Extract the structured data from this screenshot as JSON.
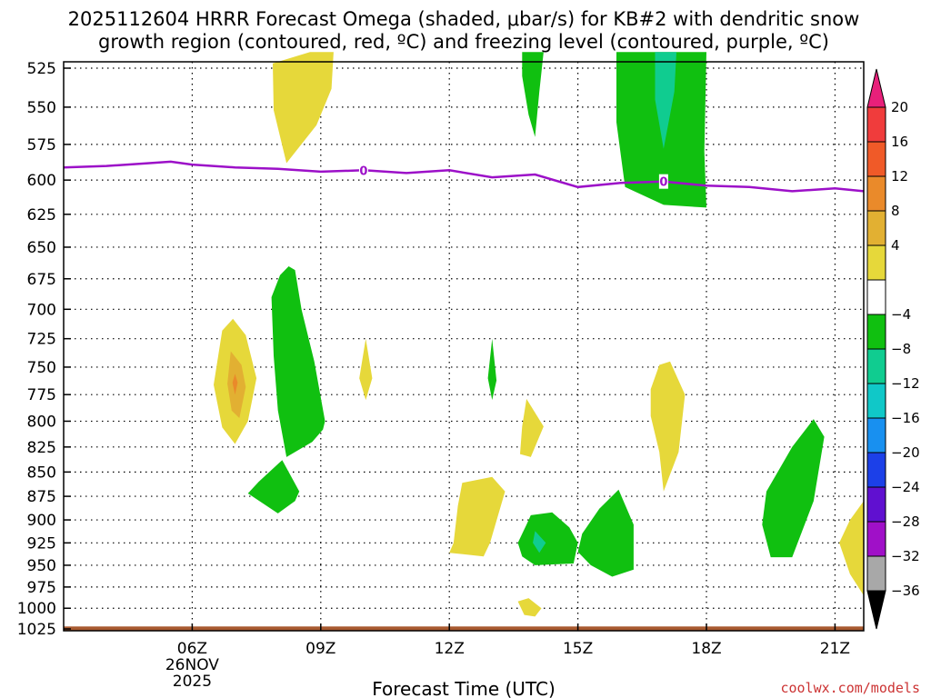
{
  "chart_data": {
    "type": "heatmap",
    "title_line1": "2025112604 HRRR Forecast Omega (shaded, μbar/s) for KB#2 with dendritic snow",
    "title_line2": "growth region (contoured, red, ºC) and freezing level (contoured, purple, ºC)",
    "xlabel": "Forecast Time (UTC)",
    "credit": "coolwx.com/models",
    "credit_color": "#cc3333",
    "x_range_hours": [
      3,
      21.67
    ],
    "y_range_hpa": [
      525,
      1025
    ],
    "x_ticks": [
      {
        "hour": 6,
        "label": "06Z",
        "sub1": "26NOV",
        "sub2": "2025"
      },
      {
        "hour": 9,
        "label": "09Z"
      },
      {
        "hour": 12,
        "label": "12Z"
      },
      {
        "hour": 15,
        "label": "15Z"
      },
      {
        "hour": 18,
        "label": "18Z"
      },
      {
        "hour": 21,
        "label": "21Z"
      }
    ],
    "y_ticks": [
      525,
      550,
      575,
      600,
      625,
      650,
      675,
      700,
      725,
      750,
      775,
      800,
      825,
      850,
      875,
      900,
      925,
      950,
      975,
      1000,
      1025
    ],
    "colorbar": {
      "labels": [
        "20",
        "16",
        "12",
        "8",
        "4",
        "−4",
        "−8",
        "−12",
        "−16",
        "−20",
        "−24",
        "−28",
        "−32",
        "−36"
      ],
      "bins": [
        {
          "color": "#e8207a",
          "role": "top-arrow"
        },
        {
          "color": "#f03c3c"
        },
        {
          "color": "#f05a28"
        },
        {
          "color": "#ea8a2a"
        },
        {
          "color": "#e2b032"
        },
        {
          "color": "#e6d83a"
        },
        {
          "color": "#ffffff"
        },
        {
          "color": "#10c010"
        },
        {
          "color": "#10cc90"
        },
        {
          "color": "#10c8c8"
        },
        {
          "color": "#1890f0"
        },
        {
          "color": "#1c40e8"
        },
        {
          "color": "#6010d0"
        },
        {
          "color": "#a010c8"
        },
        {
          "color": "#a8a8a8"
        },
        {
          "color": "#000000",
          "role": "bottom-arrow"
        }
      ]
    },
    "freezing_level": {
      "color": "#9c10c8",
      "label": "0",
      "label_hours": [
        10,
        17
      ],
      "points": [
        [
          3,
          591
        ],
        [
          4,
          590
        ],
        [
          5,
          588
        ],
        [
          5.5,
          587
        ],
        [
          6,
          589
        ],
        [
          7,
          591
        ],
        [
          8,
          592
        ],
        [
          9,
          594
        ],
        [
          10,
          593
        ],
        [
          11,
          595
        ],
        [
          12,
          593
        ],
        [
          13,
          598
        ],
        [
          14,
          596
        ],
        [
          15,
          605
        ],
        [
          16,
          602
        ],
        [
          17,
          601
        ],
        [
          18,
          604
        ],
        [
          19,
          605
        ],
        [
          20,
          608
        ],
        [
          21,
          606
        ],
        [
          21.67,
          608
        ]
      ]
    },
    "shaded_regions": [
      {
        "omega_bin": "4 to 8",
        "color": "#e6d83a",
        "points": [
          [
            6.7,
            718
          ],
          [
            6.95,
            708
          ],
          [
            7.25,
            722
          ],
          [
            7.5,
            760
          ],
          [
            7.3,
            800
          ],
          [
            7.0,
            822
          ],
          [
            6.7,
            806
          ],
          [
            6.5,
            766
          ]
        ]
      },
      {
        "omega_bin": "8 to 12",
        "color": "#e2b032",
        "points": [
          [
            6.9,
            736
          ],
          [
            7.15,
            748
          ],
          [
            7.25,
            768
          ],
          [
            7.1,
            797
          ],
          [
            6.92,
            790
          ],
          [
            6.82,
            765
          ]
        ]
      },
      {
        "omega_bin": "12 to 16",
        "color": "#ea8a2a",
        "points": [
          [
            7.0,
            756
          ],
          [
            7.06,
            764
          ],
          [
            7.0,
            775
          ],
          [
            6.94,
            764
          ]
        ]
      },
      {
        "omega_bin": "4 to 8",
        "color": "#e6d83a",
        "points": [
          [
            8.75,
            515
          ],
          [
            9.3,
            515
          ],
          [
            9.25,
            538
          ],
          [
            8.9,
            562
          ],
          [
            8.2,
            588
          ],
          [
            7.9,
            552
          ],
          [
            7.88,
            522
          ]
        ]
      },
      {
        "omega_bin": "−4 to −8",
        "color": "#10c010",
        "points": [
          [
            8.25,
            665
          ],
          [
            8.4,
            668
          ],
          [
            8.55,
            700
          ],
          [
            8.85,
            745
          ],
          [
            9.1,
            800
          ],
          [
            9.05,
            808
          ],
          [
            8.8,
            820
          ],
          [
            8.2,
            835
          ],
          [
            8.0,
            790
          ],
          [
            7.9,
            740
          ],
          [
            7.85,
            690
          ],
          [
            8.05,
            672
          ]
        ]
      },
      {
        "omega_bin": "−4 to −8",
        "color": "#10c010",
        "points": [
          [
            8.1,
            838
          ],
          [
            8.5,
            870
          ],
          [
            8.4,
            880
          ],
          [
            8.0,
            893
          ],
          [
            7.3,
            872
          ],
          [
            7.55,
            860
          ]
        ]
      },
      {
        "omega_bin": "4 to 8",
        "color": "#e6d83a",
        "points": [
          [
            10.05,
            725
          ],
          [
            10.2,
            760
          ],
          [
            10.05,
            780
          ],
          [
            9.9,
            760
          ]
        ]
      },
      {
        "omega_bin": "−4 to −8",
        "color": "#10c010",
        "points": [
          [
            13.0,
            725
          ],
          [
            13.1,
            762
          ],
          [
            13.0,
            780
          ],
          [
            12.9,
            760
          ]
        ]
      },
      {
        "omega_bin": "4 to 8",
        "color": "#e6d83a",
        "points": [
          [
            13.8,
            779
          ],
          [
            14.2,
            805
          ],
          [
            13.9,
            835
          ],
          [
            13.65,
            832
          ],
          [
            13.7,
            805
          ]
        ]
      },
      {
        "omega_bin": "−4 to −8",
        "color": "#10c010",
        "points": [
          [
            13.7,
            515
          ],
          [
            14.2,
            515
          ],
          [
            14.1,
            540
          ],
          [
            14.0,
            570
          ],
          [
            13.85,
            555
          ],
          [
            13.7,
            530
          ]
        ]
      },
      {
        "omega_bin": "−4 to −8",
        "color": "#10c010",
        "points": [
          [
            15.9,
            515
          ],
          [
            18.0,
            515
          ],
          [
            17.95,
            580
          ],
          [
            18.0,
            620
          ],
          [
            17.0,
            618
          ],
          [
            16.1,
            605
          ],
          [
            15.9,
            560
          ]
        ]
      },
      {
        "omega_bin": "−8 to −12",
        "color": "#10cc90",
        "points": [
          [
            16.8,
            515
          ],
          [
            17.3,
            515
          ],
          [
            17.25,
            540
          ],
          [
            17.0,
            578
          ],
          [
            16.8,
            545
          ]
        ]
      },
      {
        "omega_bin": "4 to 8",
        "color": "#e6d83a",
        "points": [
          [
            12.3,
            861
          ],
          [
            13.0,
            855
          ],
          [
            13.3,
            870
          ],
          [
            12.95,
            925
          ],
          [
            12.8,
            940
          ],
          [
            12.0,
            936
          ],
          [
            12.1,
            925
          ],
          [
            12.2,
            885
          ]
        ]
      },
      {
        "omega_bin": "4 to 8",
        "color": "#e6d83a",
        "points": [
          [
            16.9,
            748
          ],
          [
            17.15,
            745
          ],
          [
            17.5,
            775
          ],
          [
            17.35,
            830
          ],
          [
            17.0,
            870
          ],
          [
            16.9,
            830
          ],
          [
            16.7,
            795
          ],
          [
            16.7,
            770
          ]
        ]
      },
      {
        "omega_bin": "−4 to −8",
        "color": "#10c010",
        "points": [
          [
            13.9,
            895
          ],
          [
            14.4,
            892
          ],
          [
            14.8,
            908
          ],
          [
            15.0,
            925
          ],
          [
            14.9,
            948
          ],
          [
            14.0,
            950
          ],
          [
            13.7,
            940
          ],
          [
            13.6,
            925
          ],
          [
            13.8,
            905
          ]
        ]
      },
      {
        "omega_bin": "−4 to −8",
        "color": "#10c010",
        "points": [
          [
            15.5,
            888
          ],
          [
            15.95,
            868
          ],
          [
            16.3,
            905
          ],
          [
            16.3,
            955
          ],
          [
            15.8,
            963
          ],
          [
            15.3,
            950
          ],
          [
            15.0,
            935
          ],
          [
            15.1,
            915
          ]
        ]
      },
      {
        "omega_bin": "−8 to −12",
        "color": "#10cc90",
        "points": [
          [
            14.0,
            912
          ],
          [
            14.25,
            925
          ],
          [
            14.1,
            936
          ],
          [
            13.95,
            925
          ]
        ]
      },
      {
        "omega_bin": "4 to 8",
        "color": "#e6d83a",
        "points": [
          [
            13.6,
            992
          ],
          [
            13.85,
            988
          ],
          [
            14.15,
            1000
          ],
          [
            14.0,
            1010
          ],
          [
            13.75,
            1008
          ]
        ]
      },
      {
        "omega_bin": "−4 to −8",
        "color": "#10c010",
        "points": [
          [
            20.0,
            825
          ],
          [
            20.5,
            798
          ],
          [
            20.75,
            815
          ],
          [
            20.5,
            880
          ],
          [
            20.0,
            941
          ],
          [
            19.5,
            941
          ],
          [
            19.3,
            905
          ],
          [
            19.4,
            870
          ]
        ]
      },
      {
        "omega_bin": "4 to 8",
        "color": "#e6d83a",
        "points": [
          [
            21.67,
            905
          ],
          [
            21.67,
            985
          ],
          [
            21.35,
            960
          ],
          [
            21.1,
            925
          ],
          [
            21.35,
            900
          ],
          [
            21.67,
            880
          ]
        ]
      }
    ],
    "ground": {
      "color": "#a85a30",
      "from_hpa": 1022
    }
  }
}
